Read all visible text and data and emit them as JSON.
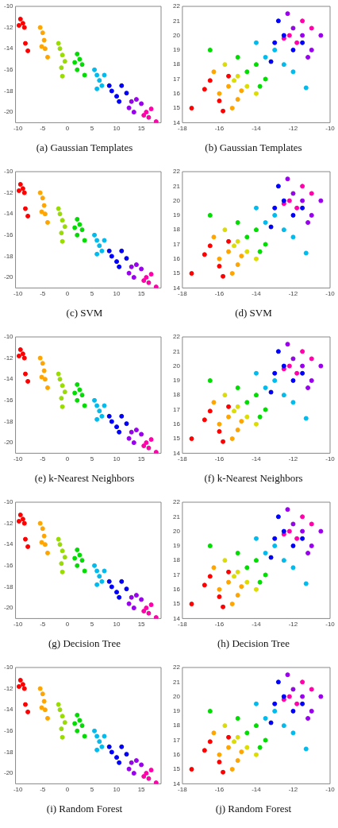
{
  "chart_data": [
    {
      "type": "scatter",
      "title": "(a) Gaussian Templates",
      "xlim": [
        -10.5,
        19
      ],
      "ylim": [
        -21,
        -10
      ],
      "xticks": [
        -10,
        -5,
        0,
        5,
        10,
        15
      ],
      "yticks": [
        -10,
        -12,
        -14,
        -16,
        -18,
        -20
      ],
      "marker": "circle",
      "series": [
        {
          "color": "#ff0000",
          "x": [
            -9.5,
            -9,
            -8.7,
            -9.8,
            -8.5,
            -8
          ],
          "values": [
            -11.2,
            -11.6,
            -12,
            -11.8,
            -13.5,
            -14.2
          ]
        },
        {
          "color": "#ffa500",
          "x": [
            -5,
            -4.7,
            -4.5,
            -5.2,
            -4,
            -5.5
          ],
          "values": [
            -12.5,
            -13.2,
            -14,
            -13.8,
            -14.8,
            -12
          ]
        },
        {
          "color": "#99dd00",
          "x": [
            -1.5,
            -1,
            -1.8,
            -0.5,
            -1.2,
            -1
          ],
          "values": [
            -14,
            -14.6,
            -13.5,
            -15.2,
            -15.8,
            -16.6
          ]
        },
        {
          "color": "#00dd00",
          "x": [
            2,
            2.5,
            3,
            2,
            3.5,
            1.5
          ],
          "values": [
            -14.5,
            -15,
            -15.5,
            -16,
            -16.5,
            -15.3
          ]
        },
        {
          "color": "#00bbee",
          "x": [
            6,
            6.5,
            7,
            5.5,
            7.5,
            6
          ],
          "values": [
            -16.5,
            -17,
            -17.5,
            -16,
            -16.5,
            -17.8
          ]
        },
        {
          "color": "#0000ff",
          "x": [
            9,
            10,
            11,
            12,
            10.5,
            8.5
          ],
          "values": [
            -18,
            -18.5,
            -17.5,
            -18.2,
            -19,
            -17.5
          ]
        },
        {
          "color": "#9900ee",
          "x": [
            13,
            14,
            12.5,
            15,
            13.5
          ],
          "values": [
            -19,
            -18.8,
            -19.6,
            -19.2,
            -20
          ]
        },
        {
          "color": "#ff00aa",
          "x": [
            16,
            17,
            16.5,
            18,
            15.5
          ],
          "values": [
            -20,
            -19.7,
            -20.5,
            -20.9,
            -20.3
          ]
        }
      ]
    },
    {
      "type": "scatter",
      "title": "(b) Gaussian Templates",
      "xlim": [
        -18,
        -10
      ],
      "ylim": [
        14,
        22
      ],
      "xticks": [
        -18,
        -16,
        -14,
        -12,
        -10
      ],
      "yticks": [
        14,
        15,
        16,
        17,
        18,
        19,
        20,
        21,
        22
      ],
      "marker": "circle",
      "series": [
        {
          "color": "#ff0000",
          "x": [
            -16.5,
            -17.5,
            -16,
            -15.8,
            -16.8,
            -15.5
          ],
          "values": [
            16.9,
            15,
            15.5,
            14.8,
            16.3,
            17.2
          ]
        },
        {
          "color": "#ffa500",
          "x": [
            -16,
            -15.5,
            -15,
            -16.3,
            -14.8,
            -15.3
          ],
          "values": [
            16,
            16.5,
            15.6,
            17.5,
            16.2,
            15
          ]
        },
        {
          "color": "#dddd00",
          "x": [
            -15,
            -14.5,
            -15.7,
            -14,
            -15.2
          ],
          "values": [
            17.2,
            16.5,
            18,
            16,
            16.9
          ]
        },
        {
          "color": "#00dd00",
          "x": [
            -14.5,
            -14,
            -15,
            -13.5,
            -16.5,
            -13.8
          ],
          "values": [
            17.5,
            18,
            18.5,
            17,
            19,
            16.5
          ]
        },
        {
          "color": "#00bbee",
          "x": [
            -13.5,
            -13,
            -12.5,
            -14,
            -12,
            -11.3
          ],
          "values": [
            18.5,
            19,
            18,
            19.5,
            17.5,
            16.4
          ]
        },
        {
          "color": "#0000ff",
          "x": [
            -13,
            -12.5,
            -12,
            -13.2,
            -12.8,
            -11.5
          ],
          "values": [
            19.5,
            20,
            19,
            18.2,
            21,
            19.5
          ]
        },
        {
          "color": "#9900ee",
          "x": [
            -12,
            -11.5,
            -11,
            -12.3,
            -10.5,
            -11.2
          ],
          "values": [
            20.5,
            20,
            19,
            21.5,
            20,
            18.5
          ]
        },
        {
          "color": "#ff00aa",
          "x": [
            -12.2,
            -11.8,
            -11.5,
            -12.5,
            -11
          ],
          "values": [
            20,
            19.5,
            21,
            19.8,
            20.5
          ]
        }
      ]
    },
    {
      "type": "scatter",
      "title": "(c) SVM",
      "xlim": [
        -10.5,
        19
      ],
      "ylim": [
        -21,
        -10
      ],
      "xticks": [
        -10,
        -5,
        0,
        5,
        10,
        15
      ],
      "yticks": [
        -10,
        -12,
        -14,
        -16,
        -18,
        -20
      ],
      "marker": "circle",
      "series": [
        {
          "color": "#ff0000",
          "x": [
            -9.5,
            -9,
            -8.7,
            -9.8,
            -8.5,
            -8
          ],
          "values": [
            -11.2,
            -11.6,
            -12,
            -11.8,
            -13.5,
            -14.2
          ]
        },
        {
          "color": "#ffa500",
          "x": [
            -5,
            -4.7,
            -4.5,
            -5.2,
            -4,
            -5.5
          ],
          "values": [
            -12.5,
            -13.2,
            -14,
            -13.8,
            -14.8,
            -12
          ]
        },
        {
          "color": "#99dd00",
          "x": [
            -1.5,
            -1,
            -1.8,
            -0.5,
            -1.2,
            -1
          ],
          "values": [
            -14,
            -14.6,
            -13.5,
            -15.2,
            -15.8,
            -16.6
          ]
        },
        {
          "color": "#00dd00",
          "x": [
            2,
            2.5,
            3,
            2,
            3.5,
            1.5
          ],
          "values": [
            -14.5,
            -15,
            -15.5,
            -16,
            -16.5,
            -15.3
          ]
        },
        {
          "color": "#00bbee",
          "x": [
            6,
            6.5,
            7,
            5.5,
            7.5,
            6
          ],
          "values": [
            -16.5,
            -17,
            -17.5,
            -16,
            -16.5,
            -17.8
          ]
        },
        {
          "color": "#0000ff",
          "x": [
            9,
            10,
            11,
            12,
            10.5,
            8.5
          ],
          "values": [
            -18,
            -18.5,
            -17.5,
            -18.2,
            -19,
            -17.5
          ]
        },
        {
          "color": "#9900ee",
          "x": [
            13,
            14,
            12.5,
            15,
            13.5
          ],
          "values": [
            -19,
            -18.8,
            -19.6,
            -19.2,
            -20
          ]
        },
        {
          "color": "#ff00aa",
          "x": [
            16,
            17,
            16.5,
            18,
            15.5
          ],
          "values": [
            -20,
            -19.7,
            -20.5,
            -20.9,
            -20.3
          ]
        }
      ]
    },
    {
      "type": "scatter",
      "title": "(d) SVM",
      "xlim": [
        -18,
        -10
      ],
      "ylim": [
        14,
        22
      ],
      "xticks": [
        -18,
        -16,
        -14,
        -12,
        -10
      ],
      "yticks": [
        14,
        15,
        16,
        17,
        18,
        19,
        20,
        21,
        22
      ],
      "marker": "circle",
      "series": [
        {
          "color": "#ff0000",
          "x": [
            -16.5,
            -17.5,
            -16,
            -15.8,
            -16.8,
            -15.5
          ],
          "values": [
            16.9,
            15,
            15.5,
            14.8,
            16.3,
            17.2
          ]
        },
        {
          "color": "#ffa500",
          "x": [
            -16,
            -15.5,
            -15,
            -16.3,
            -14.8,
            -15.3
          ],
          "values": [
            16,
            16.5,
            15.6,
            17.5,
            16.2,
            15
          ]
        },
        {
          "color": "#dddd00",
          "x": [
            -15,
            -14.5,
            -15.7,
            -14,
            -15.2
          ],
          "values": [
            17.2,
            16.5,
            18,
            16,
            16.9
          ]
        },
        {
          "color": "#00dd00",
          "x": [
            -14.5,
            -14,
            -15,
            -13.5,
            -16.5,
            -13.8
          ],
          "values": [
            17.5,
            18,
            18.5,
            17,
            19,
            16.5
          ]
        },
        {
          "color": "#00bbee",
          "x": [
            -13.5,
            -13,
            -12.5,
            -14,
            -12,
            -11.3
          ],
          "values": [
            18.5,
            19,
            18,
            19.5,
            17.5,
            16.4
          ]
        },
        {
          "color": "#0000ff",
          "x": [
            -13,
            -12.5,
            -12,
            -13.2,
            -12.8,
            -11.5
          ],
          "values": [
            19.5,
            20,
            19,
            18.2,
            21,
            19.5
          ]
        },
        {
          "color": "#9900ee",
          "x": [
            -12,
            -11.5,
            -11,
            -12.3,
            -10.5,
            -11.2
          ],
          "values": [
            20.5,
            20,
            19,
            21.5,
            20,
            18.5
          ]
        },
        {
          "color": "#ff00aa",
          "x": [
            -12.2,
            -11.8,
            -11.5,
            -12.5,
            -11
          ],
          "values": [
            20,
            19.5,
            21,
            19.8,
            20.5
          ]
        }
      ]
    },
    {
      "type": "scatter",
      "title": "(e) k-Nearest Neighbors",
      "xlim": [
        -10.5,
        19
      ],
      "ylim": [
        -21,
        -10
      ],
      "xticks": [
        -10,
        -5,
        0,
        5,
        10,
        15
      ],
      "yticks": [
        -10,
        -12,
        -14,
        -16,
        -18,
        -20
      ],
      "marker": "circle",
      "series": [
        {
          "color": "#ff0000",
          "x": [
            -9.5,
            -9,
            -8.7,
            -9.8,
            -8.5,
            -8
          ],
          "values": [
            -11.2,
            -11.6,
            -12,
            -11.8,
            -13.5,
            -14.2
          ]
        },
        {
          "color": "#ffa500",
          "x": [
            -5,
            -4.7,
            -4.5,
            -5.2,
            -4,
            -5.5
          ],
          "values": [
            -12.5,
            -13.2,
            -14,
            -13.8,
            -14.8,
            -12
          ]
        },
        {
          "color": "#99dd00",
          "x": [
            -1.5,
            -1,
            -1.8,
            -0.5,
            -1.2,
            -1
          ],
          "values": [
            -14,
            -14.6,
            -13.5,
            -15.2,
            -15.8,
            -16.6
          ]
        },
        {
          "color": "#00dd00",
          "x": [
            2,
            2.5,
            3,
            2,
            3.5,
            1.5
          ],
          "values": [
            -14.5,
            -15,
            -15.5,
            -16,
            -16.5,
            -15.3
          ]
        },
        {
          "color": "#00bbee",
          "x": [
            6,
            6.5,
            7,
            5.5,
            7.5,
            6
          ],
          "values": [
            -16.5,
            -17,
            -17.5,
            -16,
            -16.5,
            -17.8
          ]
        },
        {
          "color": "#0000ff",
          "x": [
            9,
            10,
            11,
            12,
            10.5,
            8.5
          ],
          "values": [
            -18,
            -18.5,
            -17.5,
            -18.2,
            -19,
            -17.5
          ]
        },
        {
          "color": "#9900ee",
          "x": [
            13,
            14,
            12.5,
            15,
            13.5
          ],
          "values": [
            -19,
            -18.8,
            -19.6,
            -19.2,
            -20
          ]
        },
        {
          "color": "#ff00aa",
          "x": [
            16,
            17,
            16.5,
            18,
            15.5
          ],
          "values": [
            -20,
            -19.7,
            -20.5,
            -20.9,
            -20.3
          ]
        }
      ]
    },
    {
      "type": "scatter",
      "title": "(f) k-Nearest Neighbors",
      "xlim": [
        -18,
        -10
      ],
      "ylim": [
        14,
        22
      ],
      "xticks": [
        -18,
        -16,
        -14,
        -12,
        -10
      ],
      "yticks": [
        14,
        15,
        16,
        17,
        18,
        19,
        20,
        21,
        22
      ],
      "marker": "circle",
      "series": [
        {
          "color": "#ff0000",
          "x": [
            -16.5,
            -17.5,
            -16,
            -15.8,
            -16.8,
            -15.5
          ],
          "values": [
            16.9,
            15,
            15.5,
            14.8,
            16.3,
            17.2
          ]
        },
        {
          "color": "#ffa500",
          "x": [
            -16,
            -15.5,
            -15,
            -16.3,
            -14.8,
            -15.3
          ],
          "values": [
            16,
            16.5,
            15.6,
            17.5,
            16.2,
            15
          ]
        },
        {
          "color": "#dddd00",
          "x": [
            -15,
            -14.5,
            -15.7,
            -14,
            -15.2
          ],
          "values": [
            17.2,
            16.5,
            18,
            16,
            16.9
          ]
        },
        {
          "color": "#00dd00",
          "x": [
            -14.5,
            -14,
            -15,
            -13.5,
            -16.5,
            -13.8
          ],
          "values": [
            17.5,
            18,
            18.5,
            17,
            19,
            16.5
          ]
        },
        {
          "color": "#00bbee",
          "x": [
            -13.5,
            -13,
            -12.5,
            -14,
            -12,
            -11.3
          ],
          "values": [
            18.5,
            19,
            18,
            19.5,
            17.5,
            16.4
          ]
        },
        {
          "color": "#0000ff",
          "x": [
            -13,
            -12.5,
            -12,
            -13.2,
            -12.8,
            -11.5
          ],
          "values": [
            19.5,
            20,
            19,
            18.2,
            21,
            19.5
          ]
        },
        {
          "color": "#9900ee",
          "x": [
            -12,
            -11.5,
            -11,
            -12.3,
            -10.5,
            -11.2
          ],
          "values": [
            20.5,
            20,
            19,
            21.5,
            20,
            18.5
          ]
        },
        {
          "color": "#ff00aa",
          "x": [
            -12.2,
            -11.8,
            -11.5,
            -12.5,
            -11
          ],
          "values": [
            20,
            19.5,
            21,
            19.8,
            20.5
          ]
        }
      ]
    },
    {
      "type": "scatter",
      "title": "(g) Decision Tree",
      "xlim": [
        -10.5,
        19
      ],
      "ylim": [
        -21,
        -10
      ],
      "xticks": [
        -10,
        -5,
        0,
        5,
        10,
        15
      ],
      "yticks": [
        -10,
        -12,
        -14,
        -16,
        -18,
        -20
      ],
      "marker": "circle",
      "series": [
        {
          "color": "#ff0000",
          "x": [
            -9.5,
            -9,
            -8.7,
            -9.8,
            -8.5,
            -8
          ],
          "values": [
            -11.2,
            -11.6,
            -12,
            -11.8,
            -13.5,
            -14.2
          ]
        },
        {
          "color": "#ffa500",
          "x": [
            -5,
            -4.7,
            -4.5,
            -5.2,
            -4,
            -5.5
          ],
          "values": [
            -12.5,
            -13.2,
            -14,
            -13.8,
            -14.8,
            -12
          ]
        },
        {
          "color": "#99dd00",
          "x": [
            -1.5,
            -1,
            -1.8,
            -0.5,
            -1.2,
            -1
          ],
          "values": [
            -14,
            -14.6,
            -13.5,
            -15.2,
            -15.8,
            -16.6
          ]
        },
        {
          "color": "#00dd00",
          "x": [
            2,
            2.5,
            3,
            2,
            3.5,
            1.5
          ],
          "values": [
            -14.5,
            -15,
            -15.5,
            -16,
            -16.5,
            -15.3
          ]
        },
        {
          "color": "#00bbee",
          "x": [
            6,
            6.5,
            7,
            5.5,
            7.5,
            6
          ],
          "values": [
            -16.5,
            -17,
            -17.5,
            -16,
            -16.5,
            -17.8
          ]
        },
        {
          "color": "#0000ff",
          "x": [
            9,
            10,
            11,
            12,
            10.5,
            8.5
          ],
          "values": [
            -18,
            -18.5,
            -17.5,
            -18.2,
            -19,
            -17.5
          ]
        },
        {
          "color": "#9900ee",
          "x": [
            13,
            14,
            12.5,
            15,
            13.5
          ],
          "values": [
            -19,
            -18.8,
            -19.6,
            -19.2,
            -20
          ]
        },
        {
          "color": "#ff00aa",
          "x": [
            16,
            17,
            16.5,
            18,
            15.5
          ],
          "values": [
            -20,
            -19.7,
            -20.5,
            -20.9,
            -20.3
          ]
        }
      ]
    },
    {
      "type": "scatter",
      "title": "(h) Decision Tree",
      "xlim": [
        -18,
        -10
      ],
      "ylim": [
        14,
        22
      ],
      "xticks": [
        -18,
        -16,
        -14,
        -12,
        -10
      ],
      "yticks": [
        14,
        15,
        16,
        17,
        18,
        19,
        20,
        21,
        22
      ],
      "marker": "circle",
      "series": [
        {
          "color": "#ff0000",
          "x": [
            -16.5,
            -17.5,
            -16,
            -15.8,
            -16.8,
            -15.5
          ],
          "values": [
            16.9,
            15,
            15.5,
            14.8,
            16.3,
            17.2
          ]
        },
        {
          "color": "#ffa500",
          "x": [
            -16,
            -15.5,
            -15,
            -16.3,
            -14.8,
            -15.3
          ],
          "values": [
            16,
            16.5,
            15.6,
            17.5,
            16.2,
            15
          ]
        },
        {
          "color": "#dddd00",
          "x": [
            -15,
            -14.5,
            -15.7,
            -14,
            -15.2
          ],
          "values": [
            17.2,
            16.5,
            18,
            16,
            16.9
          ]
        },
        {
          "color": "#00dd00",
          "x": [
            -14.5,
            -14,
            -15,
            -13.5,
            -16.5,
            -13.8
          ],
          "values": [
            17.5,
            18,
            18.5,
            17,
            19,
            16.5
          ]
        },
        {
          "color": "#00bbee",
          "x": [
            -13.5,
            -13,
            -12.5,
            -14,
            -12,
            -11.3
          ],
          "values": [
            18.5,
            19,
            18,
            19.5,
            17.5,
            16.4
          ]
        },
        {
          "color": "#0000ff",
          "x": [
            -13,
            -12.5,
            -12,
            -13.2,
            -12.8,
            -11.5
          ],
          "values": [
            19.5,
            20,
            19,
            18.2,
            21,
            19.5
          ]
        },
        {
          "color": "#9900ee",
          "x": [
            -12,
            -11.5,
            -11,
            -12.3,
            -10.5,
            -11.2
          ],
          "values": [
            20.5,
            20,
            19,
            21.5,
            20,
            18.5
          ]
        },
        {
          "color": "#ff00aa",
          "x": [
            -12.2,
            -11.8,
            -11.5,
            -12.5,
            -11
          ],
          "values": [
            20,
            19.5,
            21,
            19.8,
            20.5
          ]
        }
      ]
    },
    {
      "type": "scatter",
      "title": "(i) Random Forest",
      "xlim": [
        -10.5,
        19
      ],
      "ylim": [
        -21,
        -10
      ],
      "xticks": [
        -10,
        -5,
        0,
        5,
        10,
        15
      ],
      "yticks": [
        -10,
        -12,
        -14,
        -16,
        -18,
        -20
      ],
      "marker": "circle",
      "series": [
        {
          "color": "#ff0000",
          "x": [
            -9.5,
            -9,
            -8.7,
            -9.8,
            -8.5,
            -8
          ],
          "values": [
            -11.2,
            -11.6,
            -12,
            -11.8,
            -13.5,
            -14.2
          ]
        },
        {
          "color": "#ffa500",
          "x": [
            -5,
            -4.7,
            -4.5,
            -5.2,
            -4,
            -5.5
          ],
          "values": [
            -12.5,
            -13.2,
            -14,
            -13.8,
            -14.8,
            -12
          ]
        },
        {
          "color": "#99dd00",
          "x": [
            -1.5,
            -1,
            -1.8,
            -0.5,
            -1.2,
            -1
          ],
          "values": [
            -14,
            -14.6,
            -13.5,
            -15.2,
            -15.8,
            -16.6
          ]
        },
        {
          "color": "#00dd00",
          "x": [
            2,
            2.5,
            3,
            2,
            3.5,
            1.5
          ],
          "values": [
            -14.5,
            -15,
            -15.5,
            -16,
            -16.5,
            -15.3
          ]
        },
        {
          "color": "#00bbee",
          "x": [
            6,
            6.5,
            7,
            5.5,
            7.5,
            6
          ],
          "values": [
            -16.5,
            -17,
            -17.5,
            -16,
            -16.5,
            -17.8
          ]
        },
        {
          "color": "#0000ff",
          "x": [
            9,
            10,
            11,
            12,
            10.5,
            8.5
          ],
          "values": [
            -18,
            -18.5,
            -17.5,
            -18.2,
            -19,
            -17.5
          ]
        },
        {
          "color": "#9900ee",
          "x": [
            13,
            14,
            12.5,
            15,
            13.5
          ],
          "values": [
            -19,
            -18.8,
            -19.6,
            -19.2,
            -20
          ]
        },
        {
          "color": "#ff00aa",
          "x": [
            16,
            17,
            16.5,
            18,
            15.5
          ],
          "values": [
            -20,
            -19.7,
            -20.5,
            -20.9,
            -20.3
          ]
        }
      ]
    },
    {
      "type": "scatter",
      "title": "(j) Random Forest",
      "xlim": [
        -18,
        -10
      ],
      "ylim": [
        14,
        22
      ],
      "xticks": [
        -18,
        -16,
        -14,
        -12,
        -10
      ],
      "yticks": [
        14,
        15,
        16,
        17,
        18,
        19,
        20,
        21,
        22
      ],
      "marker": "circle",
      "series": [
        {
          "color": "#ff0000",
          "x": [
            -16.5,
            -17.5,
            -16,
            -15.8,
            -16.8,
            -15.5
          ],
          "values": [
            16.9,
            15,
            15.5,
            14.8,
            16.3,
            17.2
          ]
        },
        {
          "color": "#ffa500",
          "x": [
            -16,
            -15.5,
            -15,
            -16.3,
            -14.8,
            -15.3
          ],
          "values": [
            16,
            16.5,
            15.6,
            17.5,
            16.2,
            15
          ]
        },
        {
          "color": "#dddd00",
          "x": [
            -15,
            -14.5,
            -15.7,
            -14,
            -15.2
          ],
          "values": [
            17.2,
            16.5,
            18,
            16,
            16.9
          ]
        },
        {
          "color": "#00dd00",
          "x": [
            -14.5,
            -14,
            -15,
            -13.5,
            -16.5,
            -13.8
          ],
          "values": [
            17.5,
            18,
            18.5,
            17,
            19,
            16.5
          ]
        },
        {
          "color": "#00bbee",
          "x": [
            -13.5,
            -13,
            -12.5,
            -14,
            -12,
            -11.3
          ],
          "values": [
            18.5,
            19,
            18,
            19.5,
            17.5,
            16.4
          ]
        },
        {
          "color": "#0000ff",
          "x": [
            -13,
            -12.5,
            -12,
            -13.2,
            -12.8,
            -11.5
          ],
          "values": [
            19.5,
            20,
            19,
            18.2,
            21,
            19.5
          ]
        },
        {
          "color": "#9900ee",
          "x": [
            -12,
            -11.5,
            -11,
            -12.3,
            -10.5,
            -11.2
          ],
          "values": [
            20.5,
            20,
            19,
            21.5,
            20,
            18.5
          ]
        },
        {
          "color": "#ff00aa",
          "x": [
            -12.2,
            -11.8,
            -11.5,
            -12.5,
            -11
          ],
          "values": [
            20,
            19.5,
            21,
            19.8,
            20.5
          ]
        }
      ]
    }
  ]
}
